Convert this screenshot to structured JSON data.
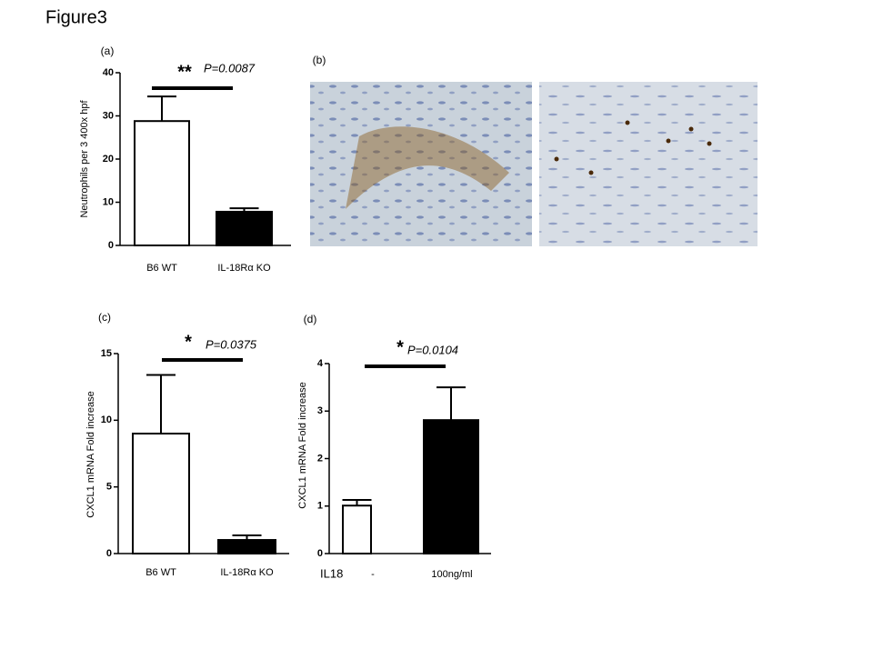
{
  "title": "Figure3",
  "chart_data": [
    {
      "type": "bar",
      "panel": "(a)",
      "ylabel": "Neutrophils  per 3  400x hpf",
      "categories": [
        "B6 WT",
        "IL-18Rα  KO"
      ],
      "values": [
        28.8,
        7.8
      ],
      "errors": [
        5.7,
        0.8
      ],
      "colors": [
        "#ffffff",
        "#000000"
      ],
      "ylim": [
        0,
        40
      ],
      "yticks": [
        0,
        10,
        20,
        30,
        40
      ],
      "significance": "**",
      "p_value": "P=0.0087"
    },
    {
      "type": "image",
      "panel": "(b)"
    },
    {
      "type": "bar",
      "panel": "(c)",
      "ylabel": "CXCL1  mRNA   Fold  increase",
      "categories": [
        "B6 WT",
        "IL-18Rα  KO"
      ],
      "values": [
        9.0,
        1.02
      ],
      "errors": [
        4.4,
        0.34
      ],
      "colors": [
        "#ffffff",
        "#000000"
      ],
      "ylim": [
        0,
        15
      ],
      "yticks": [
        0,
        5,
        10,
        15
      ],
      "significance": "*",
      "p_value": "P=0.0375"
    },
    {
      "type": "bar",
      "panel": "(d)",
      "ylabel": "CXCL1  mRNA   Fold  increase",
      "xlabel": "IL18",
      "categories": [
        "-",
        "100ng/ml"
      ],
      "values": [
        1.01,
        2.81
      ],
      "errors": [
        0.12,
        0.69
      ],
      "colors": [
        "#ffffff",
        "#000000"
      ],
      "ylim": [
        0,
        4
      ],
      "yticks": [
        0,
        1,
        2,
        3,
        4
      ],
      "significance": "*",
      "p_value": "P=0.0104"
    }
  ]
}
